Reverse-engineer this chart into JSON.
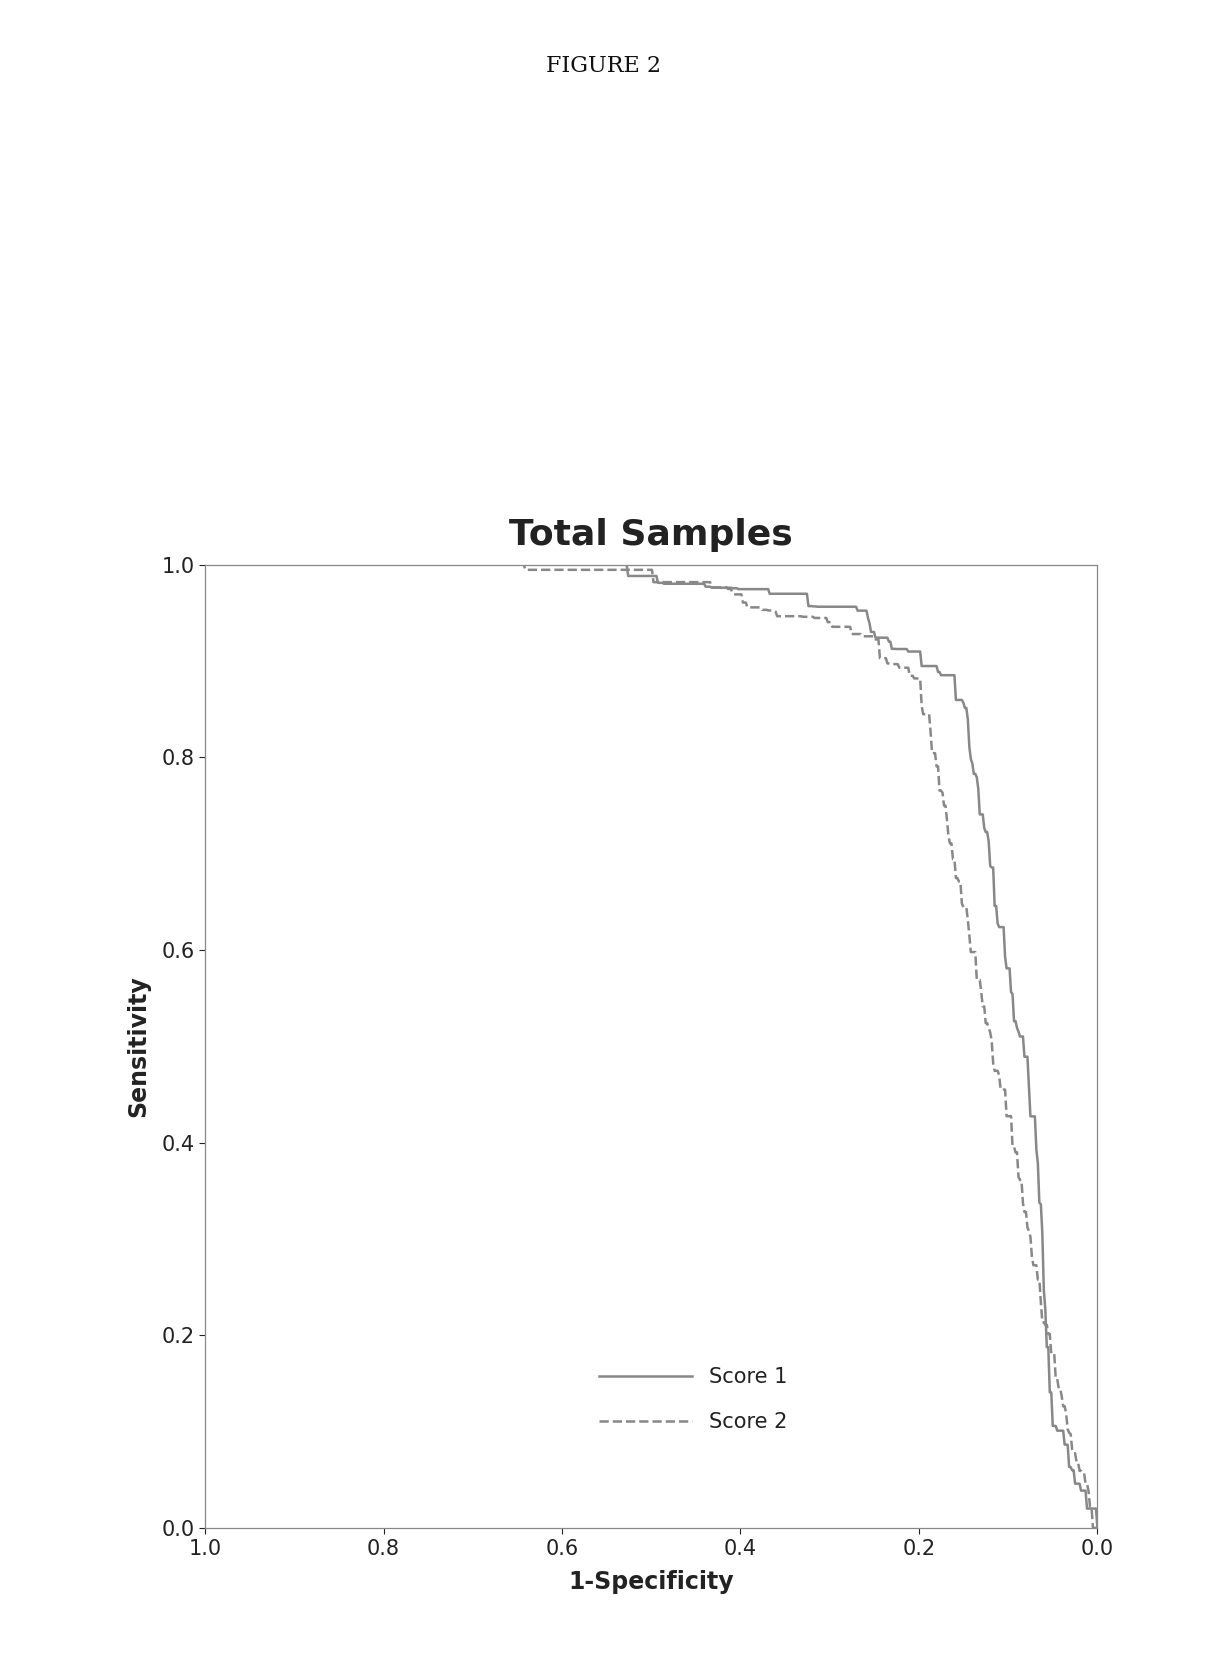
{
  "title": "Total Samples",
  "figure_label": "FIGURE 2",
  "xlabel": "1-Specificity",
  "ylabel": "Sensitivity",
  "xlim": [
    1.0,
    0.0
  ],
  "ylim": [
    0.0,
    1.0
  ],
  "xticks": [
    1.0,
    0.8,
    0.6,
    0.4,
    0.2,
    0.0
  ],
  "yticks": [
    0.0,
    0.2,
    0.4,
    0.6,
    0.8,
    1.0
  ],
  "background_color": "#ffffff",
  "title_fontsize": 26,
  "label_fontsize": 17,
  "tick_fontsize": 15,
  "legend_fontsize": 15,
  "figure_label_fontsize": 16,
  "legend_labels": [
    "Score 1",
    "Score 2"
  ],
  "score1_style": {
    "linestyle": "-",
    "linewidth": 1.8,
    "color": "#888888"
  },
  "score2_style": {
    "linestyle": "--",
    "linewidth": 1.8,
    "color": "#888888"
  },
  "spine_color": "#888888",
  "text_color": "#222222",
  "fig_label_color": "#111111"
}
